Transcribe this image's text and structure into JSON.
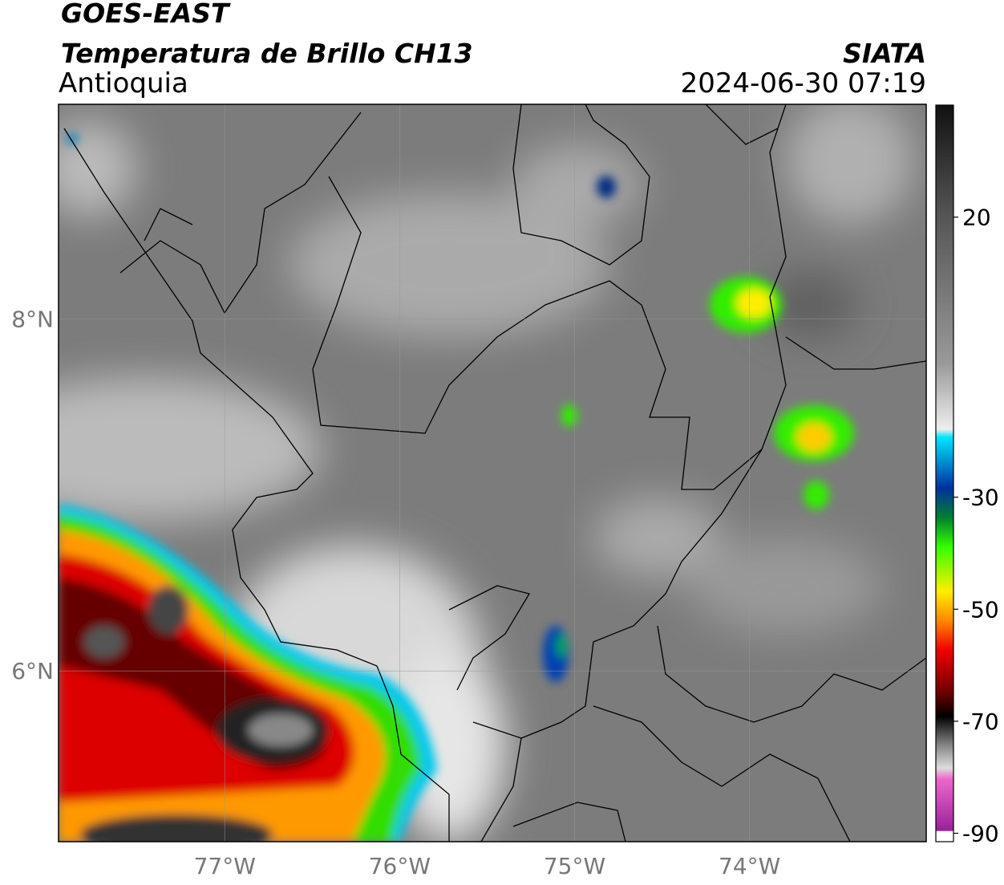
{
  "map": {
    "title": "GOES-EAST",
    "subtitle": "Temperatura de Brillo CH13",
    "region": "Antioquia",
    "source": "SIATA",
    "datetime": "2024-06-30 07:19",
    "xlim": [
      -77.95,
      -72.99
    ],
    "ylim": [
      5.03,
      9.22
    ],
    "lat_ticks": [
      {
        "value": 8,
        "label": "8°N"
      },
      {
        "value": 6,
        "label": "6°N"
      }
    ],
    "lon_ticks": [
      {
        "value": -77,
        "label": "77°W"
      },
      {
        "value": -76,
        "label": "76°W"
      },
      {
        "value": -75,
        "label": "75°W"
      },
      {
        "value": -74,
        "label": "74°W"
      }
    ],
    "colorbar": {
      "clim": [
        -91.5,
        40
      ],
      "ticks": [
        20,
        -30,
        -50,
        -70,
        -90
      ]
    }
  }
}
